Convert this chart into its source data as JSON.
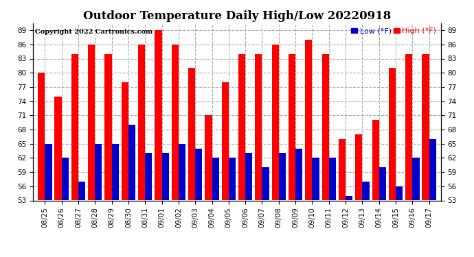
{
  "title": "Outdoor Temperature Daily High/Low 20220918",
  "copyright": "Copyright 2022 Cartronics.com",
  "legend_low": "Low ",
  "legend_low2": "(°F)",
  "legend_high": "High ",
  "legend_high2": "(°F)",
  "dates": [
    "08/25",
    "08/26",
    "08/27",
    "08/28",
    "08/29",
    "08/30",
    "08/31",
    "09/01",
    "09/02",
    "09/03",
    "09/04",
    "09/05",
    "09/06",
    "09/07",
    "09/08",
    "09/09",
    "09/10",
    "09/11",
    "09/12",
    "09/13",
    "09/14",
    "09/15",
    "09/16",
    "09/17"
  ],
  "highs": [
    80,
    75,
    84,
    86,
    84,
    78,
    86,
    89,
    86,
    81,
    71,
    78,
    84,
    84,
    86,
    84,
    87,
    84,
    66,
    67,
    70,
    81,
    84,
    84
  ],
  "lows": [
    65,
    62,
    57,
    65,
    65,
    69,
    63,
    63,
    65,
    64,
    62,
    62,
    63,
    60,
    63,
    64,
    62,
    62,
    54,
    57,
    60,
    56,
    62,
    66
  ],
  "high_color": "#ff0000",
  "low_color": "#0000cc",
  "ylim_min": 53.0,
  "ylim_max": 90.5,
  "yticks": [
    53.0,
    56.0,
    59.0,
    62.0,
    65.0,
    68.0,
    71.0,
    74.0,
    77.0,
    80.0,
    83.0,
    86.0,
    89.0
  ],
  "background_color": "#ffffff",
  "grid_color": "#aaaaaa",
  "title_fontsize": 12,
  "tick_fontsize": 7.5,
  "bar_width": 0.42
}
